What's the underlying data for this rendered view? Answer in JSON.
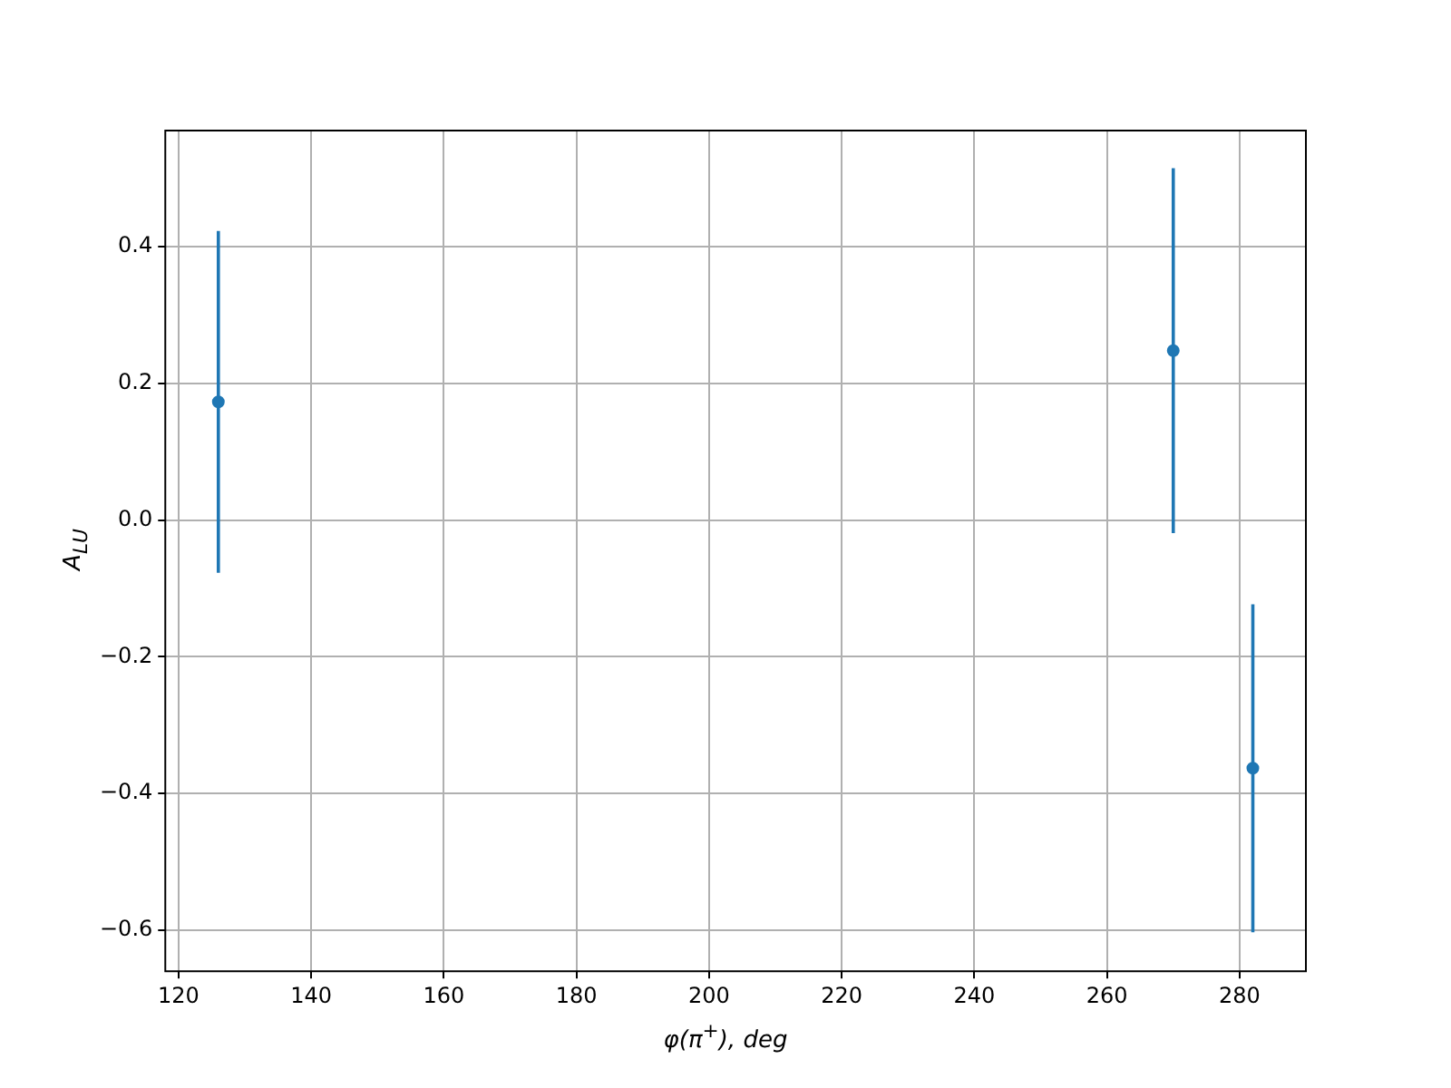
{
  "chart_data": {
    "type": "scatter",
    "xlabel": "φ(π$^{+}$), deg",
    "ylabel": "A$_{LU}$",
    "x": [
      126,
      270,
      282
    ],
    "series": [
      {
        "color": "#1f77b4",
        "values": [
          0.173,
          0.248,
          -0.363
        ],
        "errors": [
          0.25,
          0.267,
          0.24
        ]
      }
    ],
    "xlim": [
      118,
      290
    ],
    "xticks": [
      120,
      140,
      160,
      180,
      200,
      220,
      240,
      260,
      280
    ],
    "ylim": [
      -0.66,
      0.57
    ],
    "yticks": [
      {
        "value": -0.6,
        "label": "−0.6"
      },
      {
        "value": -0.4,
        "label": "−0.4"
      },
      {
        "value": -0.2,
        "label": "−0.2"
      },
      {
        "value": 0,
        "label": "0.0"
      },
      {
        "value": 0.2,
        "label": "0.2"
      },
      {
        "value": 0.4,
        "label": "0.4"
      }
    ],
    "grid": true,
    "marker": "circle",
    "legend": false
  }
}
